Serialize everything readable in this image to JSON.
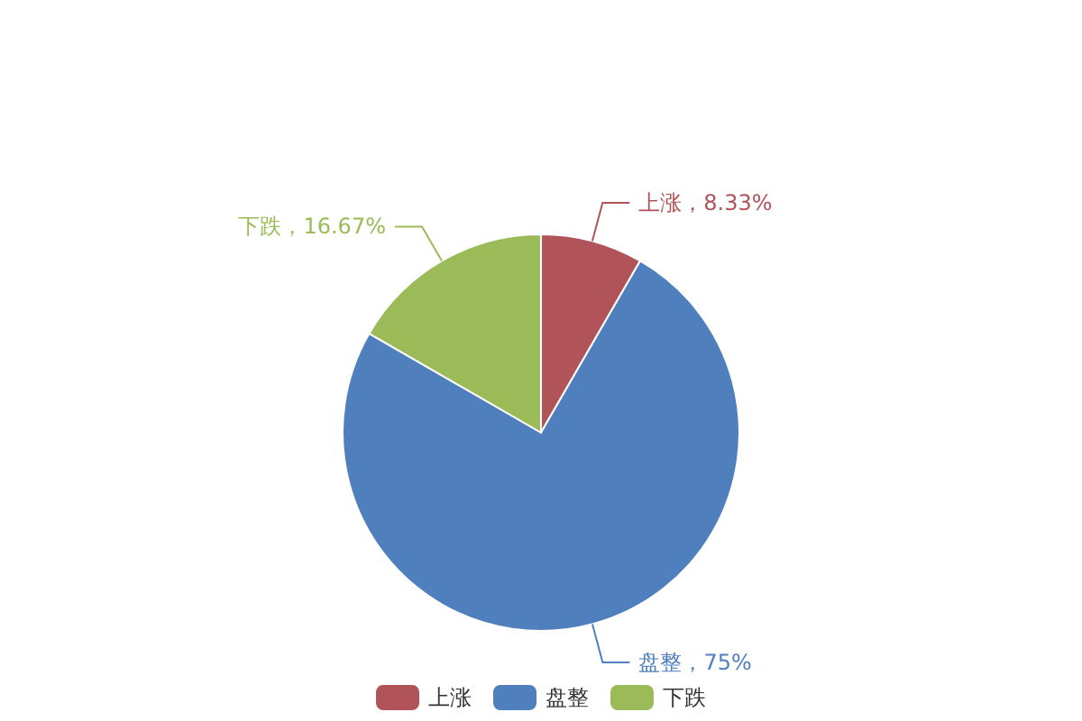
{
  "chart_data": {
    "type": "pie",
    "categories": [
      "上涨",
      "盘整",
      "下跌"
    ],
    "values": [
      8.33,
      75,
      16.67
    ],
    "colors": [
      "#b0545a",
      "#4f7fbd",
      "#9bbb59"
    ],
    "value_labels": [
      "上涨，8.33%",
      "盘整，75%",
      "下跌，16.67%"
    ],
    "legend": "bottom"
  }
}
